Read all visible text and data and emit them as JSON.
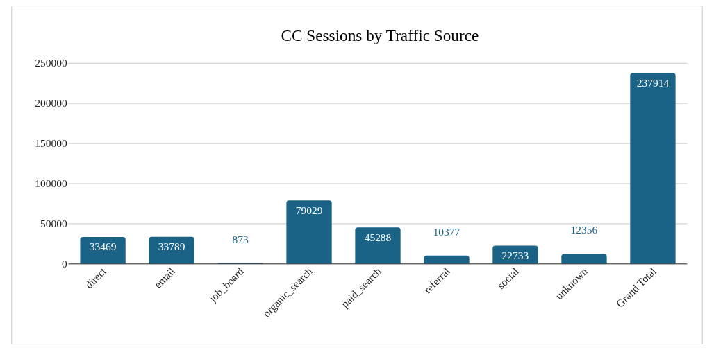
{
  "chart_data": {
    "type": "bar",
    "title": "CC Sessions by Traffic Source",
    "categories": [
      "direct",
      "email",
      "job_board",
      "organic_search",
      "paid_search",
      "referral",
      "social",
      "unknown",
      "Grand Total"
    ],
    "values": [
      33469,
      33789,
      873,
      79029,
      45288,
      10377,
      22733,
      12356,
      237914
    ],
    "color": "#1a6386",
    "ylim": [
      0,
      250000
    ],
    "yticks": [
      0,
      50000,
      100000,
      150000,
      200000,
      250000
    ],
    "grid": "y",
    "data_labels": true
  }
}
